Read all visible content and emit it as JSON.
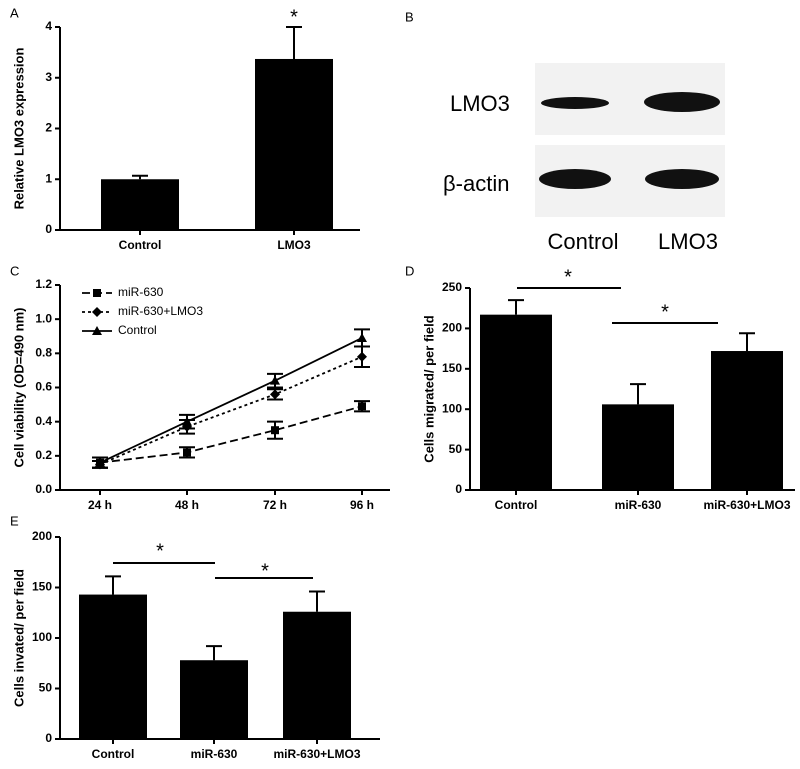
{
  "chart_data": [
    {
      "type": "bar",
      "panel": "A",
      "ylabel": "Relative LMO3 expression",
      "categories": [
        "Control",
        "LMO3"
      ],
      "values": [
        1.0,
        3.37
      ],
      "errors": [
        0.07,
        0.63
      ],
      "color": "#000000",
      "ylim": [
        0,
        4
      ],
      "yticks": [
        0,
        1,
        2,
        3,
        4
      ],
      "annotations": [
        "*"
      ]
    },
    {
      "type": "line",
      "panel": "C",
      "ylabel": "Cell viability (OD=490 nm)",
      "categories": [
        "24 h",
        "48 h",
        "72 h",
        "96 h"
      ],
      "series": [
        {
          "name": "miR-630",
          "color": "#000000",
          "values": [
            0.16,
            0.22,
            0.35,
            0.49
          ],
          "errors": [
            0.03,
            0.03,
            0.05,
            0.03
          ]
        },
        {
          "name": "miR-630+LMO3",
          "color": "#000000",
          "values": [
            0.15,
            0.37,
            0.56,
            0.78
          ],
          "errors": [
            0.02,
            0.04,
            0.03,
            0.06
          ]
        },
        {
          "name": "Control",
          "color": "#000000",
          "values": [
            0.16,
            0.4,
            0.64,
            0.89
          ],
          "errors": [
            0.03,
            0.04,
            0.04,
            0.05
          ]
        }
      ],
      "ylim": [
        0,
        1.2
      ],
      "yticks": [
        {
          "value": 0,
          "label": "0.0"
        },
        0.2,
        0.4,
        0.6,
        0.8,
        {
          "value": 1,
          "label": "1.0"
        },
        1.2
      ]
    },
    {
      "type": "bar",
      "panel": "D",
      "ylabel": "Cells migrated/ per field",
      "categories": [
        "Control",
        "miR-630",
        "miR-630+LMO3"
      ],
      "values": [
        217,
        106,
        172
      ],
      "errors": [
        18,
        25,
        22
      ],
      "color": "#000000",
      "ylim": [
        0,
        250
      ],
      "yticks": [
        0,
        50,
        100,
        150,
        200,
        250
      ],
      "annotations": [
        "*",
        "*"
      ]
    },
    {
      "type": "bar",
      "panel": "E",
      "ylabel": "Cells invated/ per field",
      "categories": [
        "Control",
        "miR-630",
        "miR-630+LMO3"
      ],
      "values": [
        143,
        78,
        126
      ],
      "errors": [
        18,
        14,
        20
      ],
      "color": "#000000",
      "ylim": [
        0,
        200
      ],
      "yticks": [
        0,
        50,
        100,
        150,
        200
      ],
      "annotations": [
        "*",
        "*"
      ]
    }
  ],
  "blot": {
    "panel": "B",
    "rows": [
      "LMO3",
      "β-actin"
    ],
    "columns": [
      "Control",
      "LMO3"
    ]
  }
}
